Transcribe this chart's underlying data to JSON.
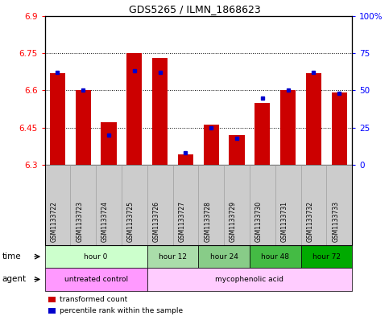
{
  "title": "GDS5265 / ILMN_1868623",
  "samples": [
    "GSM1133722",
    "GSM1133723",
    "GSM1133724",
    "GSM1133725",
    "GSM1133726",
    "GSM1133727",
    "GSM1133728",
    "GSM1133729",
    "GSM1133730",
    "GSM1133731",
    "GSM1133732",
    "GSM1133733"
  ],
  "red_values": [
    6.67,
    6.6,
    6.47,
    6.75,
    6.73,
    6.34,
    6.46,
    6.42,
    6.55,
    6.6,
    6.67,
    6.59
  ],
  "blue_percentiles": [
    62,
    50,
    20,
    63,
    62,
    8,
    25,
    18,
    45,
    50,
    62,
    48
  ],
  "ymin": 6.3,
  "ymax": 6.9,
  "yticks": [
    6.3,
    6.45,
    6.6,
    6.75,
    6.9
  ],
  "ytick_labels": [
    "6.3",
    "6.45",
    "6.6",
    "6.75",
    "6.9"
  ],
  "right_yticks": [
    0,
    25,
    50,
    75,
    100
  ],
  "right_ytick_labels": [
    "0",
    "25",
    "50",
    "75",
    "100%"
  ],
  "bar_color": "#cc0000",
  "dot_color": "#0000cc",
  "grid_lines": [
    6.45,
    6.6,
    6.75
  ],
  "sample_bg_color": "#cccccc",
  "time_groups": [
    {
      "label": "hour 0",
      "indices": [
        0,
        1,
        2,
        3
      ],
      "color": "#ccffcc"
    },
    {
      "label": "hour 12",
      "indices": [
        4,
        5
      ],
      "color": "#aaddaa"
    },
    {
      "label": "hour 24",
      "indices": [
        6,
        7
      ],
      "color": "#88cc88"
    },
    {
      "label": "hour 48",
      "indices": [
        8,
        9
      ],
      "color": "#44bb44"
    },
    {
      "label": "hour 72",
      "indices": [
        10,
        11
      ],
      "color": "#00aa00"
    }
  ],
  "agent_groups": [
    {
      "label": "untreated control",
      "indices": [
        0,
        1,
        2,
        3
      ],
      "color": "#ff99ff"
    },
    {
      "label": "mycophenolic acid",
      "indices": [
        4,
        5,
        6,
        7,
        8,
        9,
        10,
        11
      ],
      "color": "#ffccff"
    }
  ]
}
